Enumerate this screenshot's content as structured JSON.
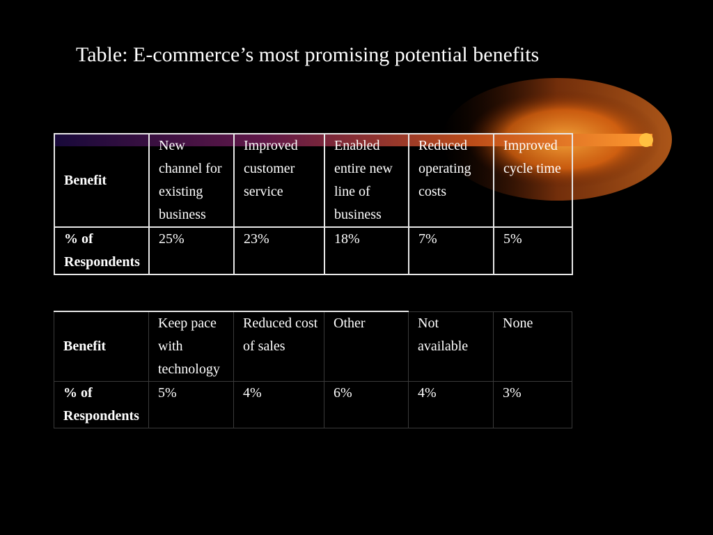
{
  "slide": {
    "title": "Table: E-commerce’s most promising potential benefits"
  },
  "table1": {
    "row_header_benefit": "Benefit",
    "row_header_percent": "% of Respondents",
    "benefits": [
      "New channel for existing business",
      "Improved customer service",
      "Enabled entire new line of business",
      "Reduced operating costs",
      "Improved cycle time"
    ],
    "percents": [
      "25%",
      "23%",
      "18%",
      "7%",
      "5%"
    ]
  },
  "table2": {
    "row_header_benefit": "Benefit",
    "row_header_percent": "% of Respondents",
    "benefits": [
      "Keep pace with technology",
      "Reduced cost of sales",
      "Other",
      "Not available",
      "None"
    ],
    "percents": [
      "5%",
      "4%",
      "6%",
      "4%",
      "3%"
    ]
  },
  "colors": {
    "background": "#000000",
    "text": "#ffffff",
    "glow": "#ff8c1a"
  }
}
